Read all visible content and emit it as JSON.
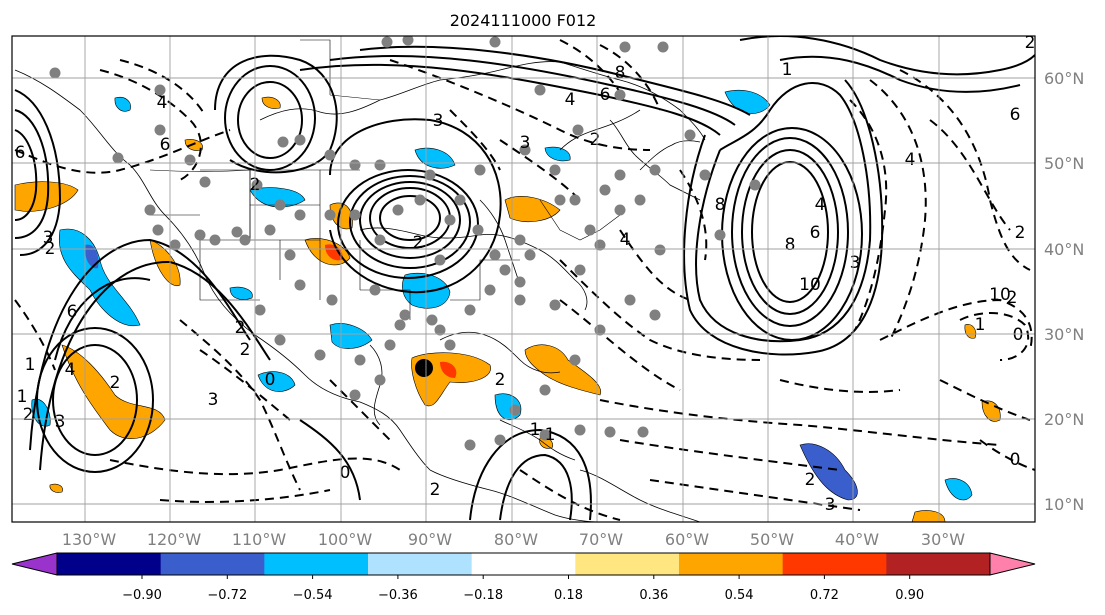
{
  "title": "2024111000 F012",
  "lat_labels": [
    "60°N",
    "50°N",
    "40°N",
    "30°N",
    "20°N",
    "10°N"
  ],
  "lon_labels": [
    "130°W",
    "120°W",
    "110°W",
    "100°W",
    "90°W",
    "80°W",
    "70°W",
    "60°W",
    "50°W",
    "40°W",
    "30°W"
  ],
  "colorbar": {
    "ticks": [
      "−0.90",
      "−0.72",
      "−0.54",
      "−0.36",
      "−0.18",
      "0.18",
      "0.36",
      "0.54",
      "0.72",
      "0.90"
    ],
    "under_color": "#9933cc",
    "over_color": "#ff80aa",
    "colors": [
      "#00008b",
      "#3a5fcd",
      "#00bfff",
      "#aee2ff",
      "#ffffff",
      "#ffe680",
      "#ffa500",
      "#ff3800",
      "#b22222"
    ]
  },
  "contour_labels": [
    "6",
    "4",
    "6",
    "8",
    "4",
    "3",
    "6",
    "2",
    "3",
    "1",
    "6",
    "2",
    "3",
    "4",
    "3",
    "2",
    "8",
    "4",
    "6",
    "8",
    "10",
    "4",
    "2",
    "2",
    "2",
    "3",
    "1",
    "2",
    "1",
    "2",
    "3",
    "2",
    "4",
    "6",
    "2",
    "0",
    "2",
    "1",
    "3",
    "2",
    "2",
    "0",
    "0",
    "10",
    "1",
    "0",
    "1",
    "2"
  ]
}
